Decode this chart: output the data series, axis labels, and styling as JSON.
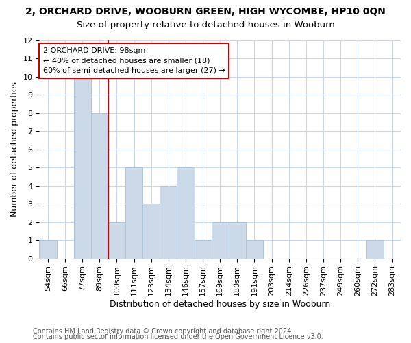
{
  "title": "2, ORCHARD DRIVE, WOOBURN GREEN, HIGH WYCOMBE, HP10 0QN",
  "subtitle": "Size of property relative to detached houses in Wooburn",
  "xlabel": "Distribution of detached houses by size in Wooburn",
  "ylabel": "Number of detached properties",
  "categories": [
    "54sqm",
    "66sqm",
    "77sqm",
    "89sqm",
    "100sqm",
    "111sqm",
    "123sqm",
    "134sqm",
    "146sqm",
    "157sqm",
    "169sqm",
    "180sqm",
    "191sqm",
    "203sqm",
    "214sqm",
    "226sqm",
    "237sqm",
    "249sqm",
    "260sqm",
    "272sqm",
    "283sqm"
  ],
  "values": [
    1,
    0,
    10,
    8,
    2,
    5,
    3,
    4,
    5,
    1,
    2,
    2,
    1,
    0,
    0,
    0,
    0,
    0,
    0,
    1,
    0
  ],
  "bar_color": "#ccd9e8",
  "bar_edge_color": "#aec4d8",
  "marker_line_color": "#cc0000",
  "annotation_title": "2 ORCHARD DRIVE: 98sqm",
  "annotation_line1": "← 40% of detached houses are smaller (18)",
  "annotation_line2": "60% of semi-detached houses are larger (27) →",
  "annotation_box_color": "#cc0000",
  "ylim": [
    0,
    12
  ],
  "yticks": [
    0,
    1,
    2,
    3,
    4,
    5,
    6,
    7,
    8,
    9,
    10,
    11,
    12
  ],
  "grid_color": "#c8d8ea",
  "background_color": "#ffffff",
  "footer_line1": "Contains HM Land Registry data © Crown copyright and database right 2024.",
  "footer_line2": "Contains public sector information licensed under the Open Government Licence v3.0.",
  "title_fontsize": 10,
  "subtitle_fontsize": 9.5,
  "xlabel_fontsize": 9,
  "ylabel_fontsize": 9,
  "tick_fontsize": 8,
  "annotation_fontsize": 8,
  "footer_fontsize": 7
}
